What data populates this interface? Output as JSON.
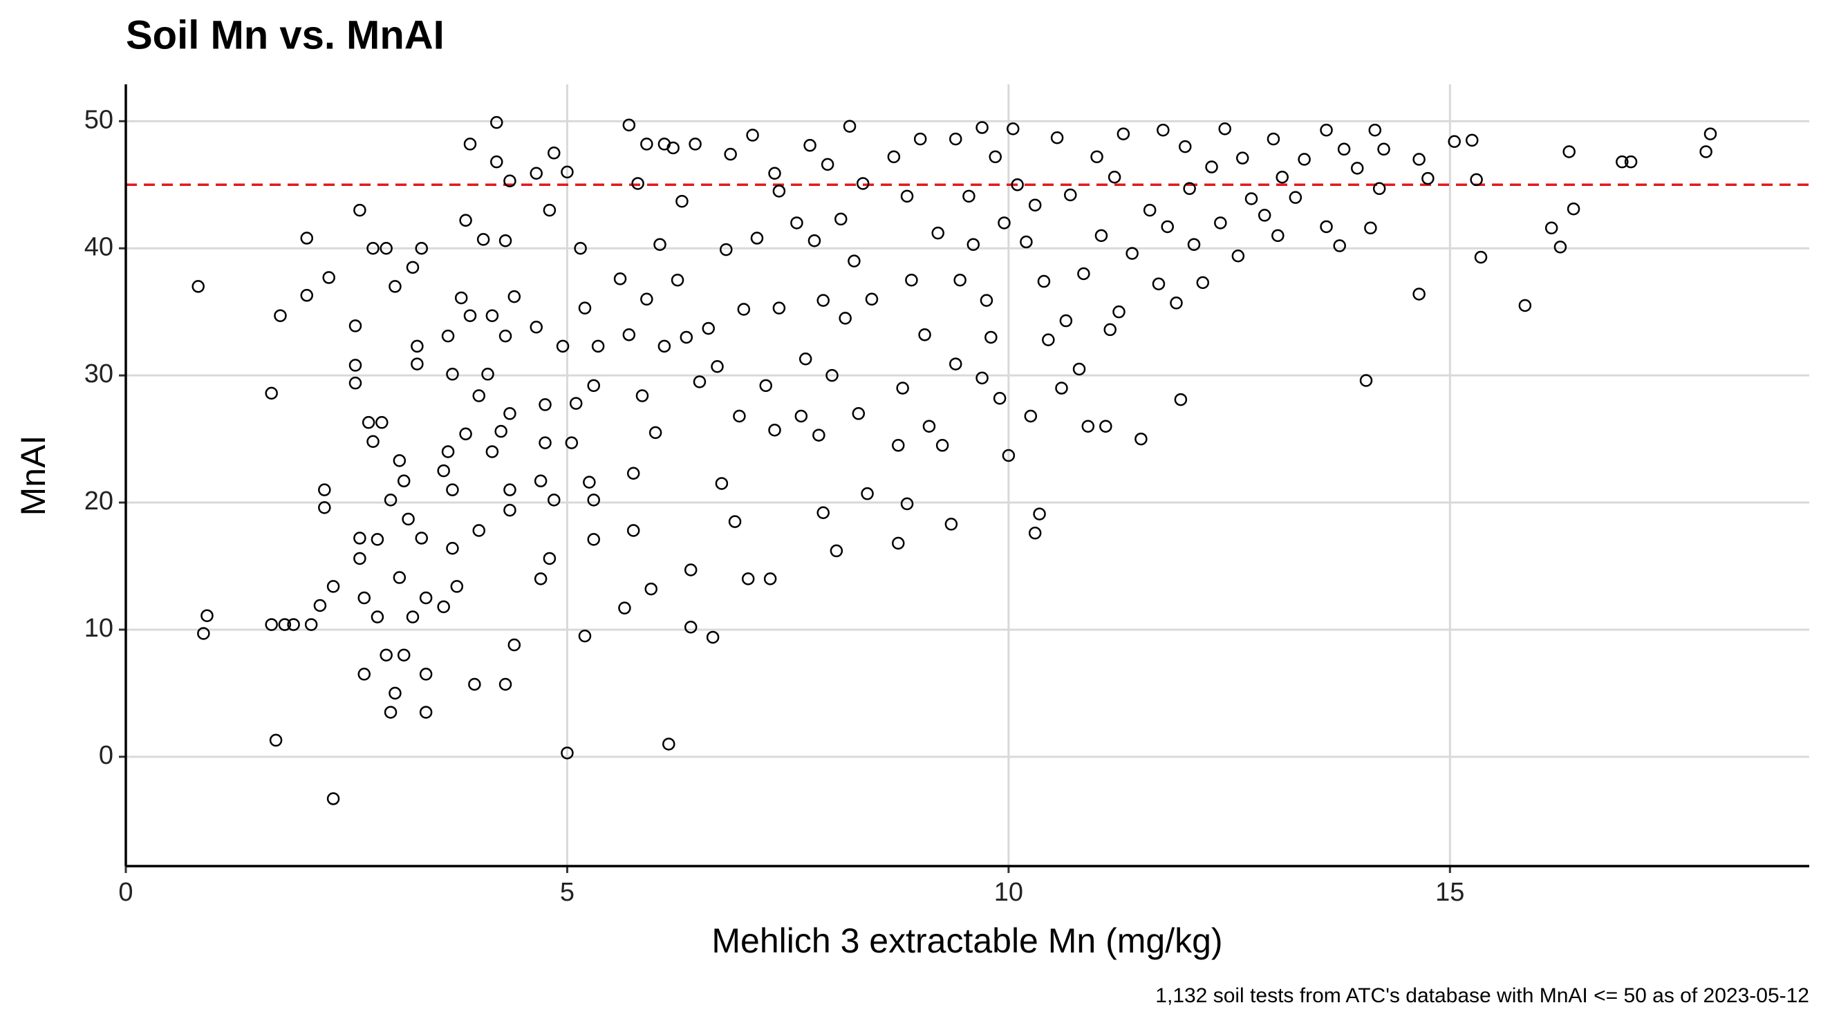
{
  "chart_data": {
    "type": "scatter",
    "title": "Soil Mn vs. MnAI",
    "x_label": "Mehlich 3 extractable Mn (mg/kg)",
    "y_label": "MnAI",
    "caption": "1,132 soil tests from ATC's database with MnAI <= 50 as of 2023-05-12",
    "xlim": [
      0,
      19.07
    ],
    "ylim": [
      -8.6,
      52.9
    ],
    "xticks": [
      0,
      5,
      10,
      15
    ],
    "yticks": [
      0,
      10,
      20,
      30,
      40,
      50
    ],
    "grid": true,
    "marker_color": "#000000",
    "reference_line": {
      "y": 45,
      "color": "#e31a1c"
    },
    "x": [
      0.82,
      0.88,
      0.92,
      1.65,
      1.65,
      1.7,
      1.75,
      1.8,
      1.9,
      2.05,
      2.05,
      2.1,
      2.2,
      2.25,
      2.25,
      2.3,
      2.35,
      2.35,
      2.6,
      2.6,
      2.6,
      2.65,
      2.65,
      2.65,
      2.7,
      2.7,
      2.75,
      2.8,
      2.8,
      2.85,
      2.85,
      2.9,
      2.95,
      2.95,
      3,
      3,
      3.05,
      3.05,
      3.1,
      3.1,
      3.15,
      3.15,
      3.2,
      3.25,
      3.25,
      3.3,
      3.3,
      3.35,
      3.35,
      3.4,
      3.4,
      3.4,
      3.6,
      3.6,
      3.65,
      3.65,
      3.7,
      3.7,
      3.7,
      3.75,
      3.8,
      3.85,
      3.85,
      3.9,
      3.9,
      3.95,
      4,
      4,
      4.05,
      4.1,
      4.15,
      4.15,
      4.2,
      4.2,
      4.25,
      4.3,
      4.3,
      4.3,
      4.35,
      4.35,
      4.35,
      4.35,
      4.4,
      4.4,
      4.65,
      4.65,
      4.7,
      4.7,
      4.75,
      4.75,
      4.8,
      4.8,
      4.85,
      4.85,
      4.95,
      5,
      5,
      5.05,
      5.1,
      5.15,
      5.2,
      5.2,
      5.25,
      5.3,
      5.3,
      5.3,
      5.35,
      5.6,
      5.65,
      5.7,
      5.7,
      5.75,
      5.75,
      5.8,
      5.85,
      5.9,
      5.9,
      5.95,
      6,
      6.05,
      6.1,
      6.1,
      6.15,
      6.2,
      6.25,
      6.3,
      6.35,
      6.4,
      6.4,
      6.45,
      6.5,
      6.6,
      6.65,
      6.7,
      6.75,
      6.8,
      6.85,
      6.9,
      6.95,
      7,
      7.05,
      7.1,
      7.15,
      7.25,
      7.3,
      7.35,
      7.35,
      7.4,
      7.4,
      7.6,
      7.65,
      7.7,
      7.75,
      7.8,
      7.85,
      7.9,
      7.9,
      7.95,
      8,
      8.05,
      8.1,
      8.15,
      8.2,
      8.25,
      8.3,
      8.35,
      8.4,
      8.45,
      8.7,
      8.75,
      8.75,
      8.8,
      8.85,
      8.85,
      8.9,
      9,
      9.05,
      9.1,
      9.2,
      9.25,
      9.35,
      9.4,
      9.45,
      9.4,
      9.55,
      9.6,
      9.7,
      9.7,
      9.75,
      9.8,
      9.85,
      9.9,
      9.95,
      10,
      10.05,
      10.1,
      10.2,
      10.25,
      10.3,
      10.3,
      10.35,
      10.4,
      10.45,
      10.55,
      10.6,
      10.65,
      10.7,
      10.8,
      10.85,
      10.9,
      11,
      11.05,
      11.1,
      11.15,
      11.2,
      11.25,
      11.3,
      11.4,
      11.5,
      11.6,
      11.7,
      11.75,
      11.8,
      11.9,
      11.95,
      12,
      12.05,
      12.1,
      12.2,
      12.3,
      12.4,
      12.45,
      12.6,
      12.65,
      12.75,
      12.9,
      13,
      13.05,
      13.1,
      13.25,
      13.35,
      13.6,
      13.6,
      13.75,
      13.8,
      13.95,
      14.05,
      14.1,
      14.15,
      14.2,
      14.25,
      14.65,
      14.65,
      14.75,
      15.05,
      15.25,
      15.3,
      15.35,
      15.85,
      16.15,
      16.25,
      16.35,
      16.4,
      16.95,
      17.05,
      17.9,
      17.95
    ],
    "values": [
      37,
      9.7,
      11.1,
      28.6,
      10.4,
      1.3,
      34.7,
      10.4,
      10.4,
      36.3,
      40.8,
      10.4,
      11.9,
      19.6,
      21,
      37.7,
      13.4,
      -3.3,
      30.8,
      29.4,
      33.9,
      43,
      17.2,
      15.6,
      12.5,
      6.5,
      26.3,
      24.8,
      40,
      17.1,
      11,
      26.3,
      40,
      8,
      20.2,
      3.5,
      37,
      5,
      23.3,
      14.1,
      21.7,
      8,
      18.7,
      38.5,
      11,
      32.3,
      30.9,
      40,
      17.2,
      6.5,
      3.5,
      12.5,
      11.8,
      22.5,
      24,
      33.1,
      30.1,
      16.4,
      21,
      13.4,
      36.1,
      25.4,
      42.2,
      48.2,
      34.7,
      5.7,
      17.8,
      28.4,
      40.7,
      30.1,
      34.7,
      24,
      46.8,
      49.9,
      25.6,
      40.6,
      33.1,
      5.7,
      45.3,
      21,
      19.4,
      27,
      36.2,
      8.8,
      45.9,
      33.8,
      21.7,
      14,
      27.7,
      24.7,
      43,
      15.6,
      47.5,
      20.2,
      32.3,
      46,
      0.3,
      24.7,
      27.8,
      40,
      9.5,
      35.3,
      21.6,
      20.2,
      29.2,
      17.1,
      32.3,
      37.6,
      11.7,
      49.7,
      33.2,
      22.3,
      17.8,
      45.1,
      28.4,
      48.2,
      36,
      13.2,
      25.5,
      40.3,
      48.2,
      32.3,
      1,
      47.9,
      37.5,
      43.7,
      33,
      14.7,
      10.2,
      48.2,
      29.5,
      33.7,
      9.4,
      30.7,
      21.5,
      39.9,
      47.4,
      18.5,
      26.8,
      35.2,
      14,
      48.9,
      40.8,
      29.2,
      14,
      25.7,
      45.9,
      35.3,
      44.5,
      42,
      26.8,
      31.3,
      48.1,
      40.6,
      25.3,
      35.9,
      19.2,
      46.6,
      30,
      16.2,
      42.3,
      34.5,
      49.6,
      39,
      27,
      45.1,
      20.7,
      36,
      47.2,
      24.5,
      16.8,
      29,
      44.1,
      19.9,
      37.5,
      48.6,
      33.2,
      26,
      41.2,
      24.5,
      18.3,
      48.6,
      37.5,
      30.9,
      44.1,
      40.3,
      49.5,
      29.8,
      35.9,
      33,
      47.2,
      28.2,
      42,
      23.7,
      49.4,
      45,
      40.5,
      26.8,
      43.4,
      17.6,
      19.1,
      37.4,
      32.8,
      48.7,
      29,
      34.3,
      44.2,
      30.5,
      38,
      26,
      47.2,
      41,
      26,
      33.6,
      45.6,
      35,
      49,
      39.6,
      25,
      43,
      37.2,
      49.3,
      41.7,
      35.7,
      28.1,
      48,
      44.7,
      40.3,
      37.3,
      46.4,
      42,
      49.4,
      39.4,
      47.1,
      43.9,
      42.6,
      48.6,
      41,
      45.6,
      44,
      47,
      49.3,
      41.7,
      40.2,
      47.8,
      46.3,
      29.6,
      41.6,
      49.3,
      44.7,
      47.8,
      47,
      36.4,
      45.5,
      48.4,
      48.5,
      45.4,
      39.3,
      35.5,
      41.6,
      40.1,
      47.6,
      43.1,
      46.8,
      46.8,
      47.6,
      49
    ]
  }
}
